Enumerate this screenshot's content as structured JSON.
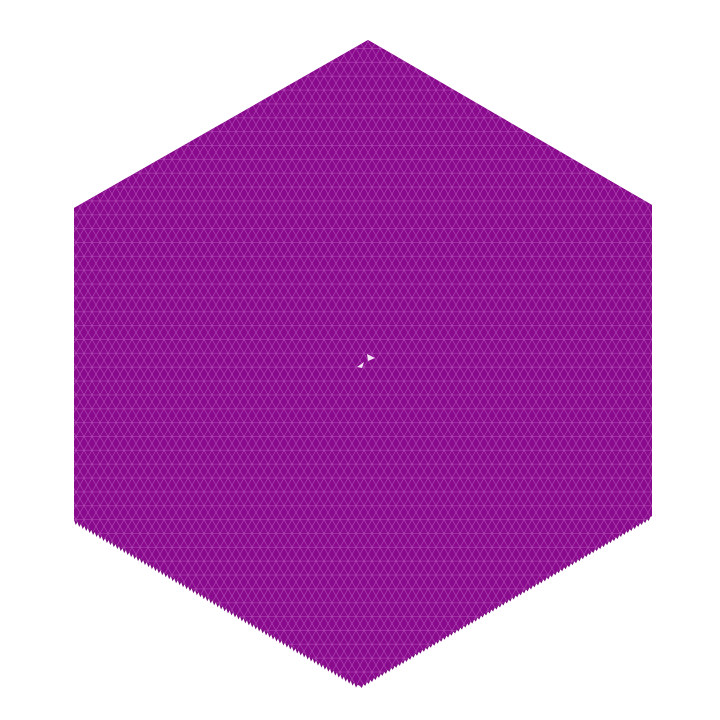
{
  "canvas": {
    "background": "#ffffff"
  },
  "mesh": {
    "shape": "hexagon",
    "pattern": "triangular-grid",
    "fill_color": "#8a0a8e",
    "grid_line_color": "#c26ac4",
    "edge_color": "#7a0a7e",
    "highlight_color": "#f4e6f4",
    "highlight_icon": "small-white-triangles-at-center",
    "jagged_bottom_edge": true
  }
}
